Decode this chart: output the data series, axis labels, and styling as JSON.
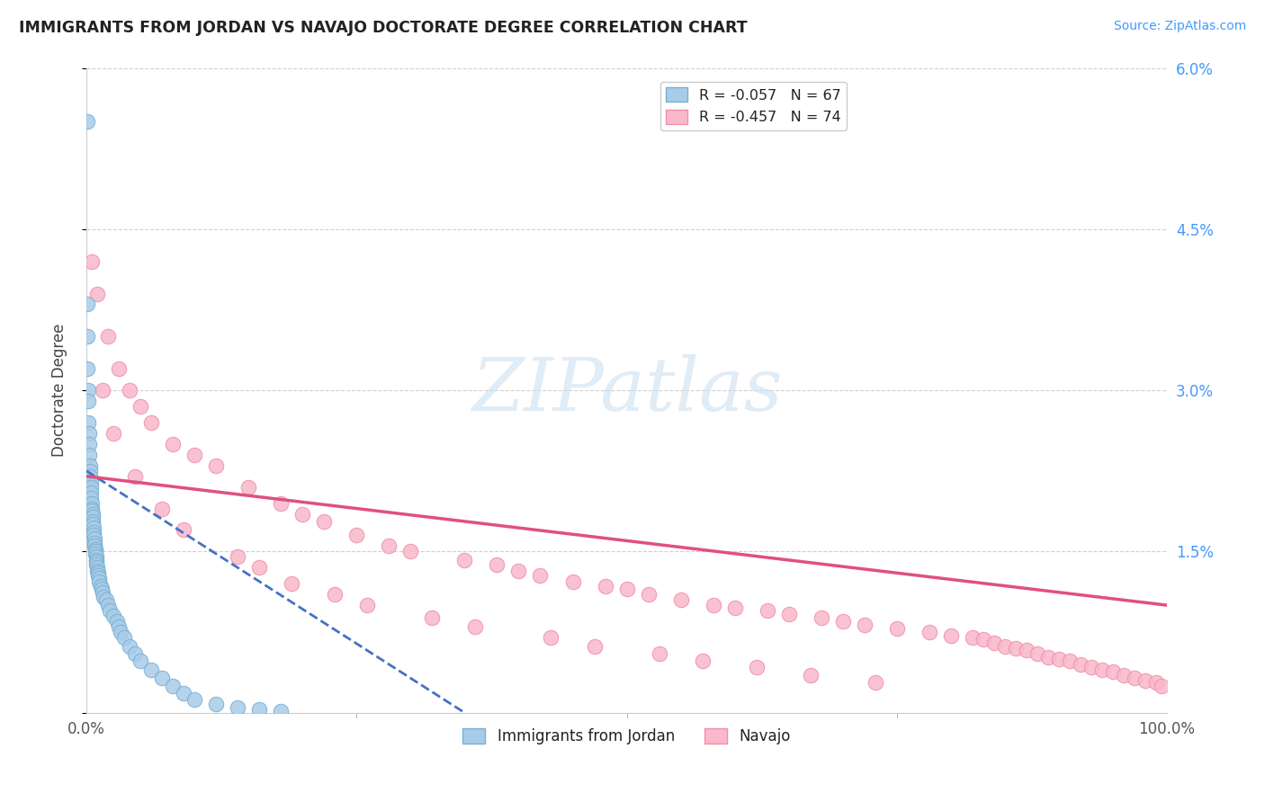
{
  "title": "IMMIGRANTS FROM JORDAN VS NAVAJO DOCTORATE DEGREE CORRELATION CHART",
  "source": "Source: ZipAtlas.com",
  "ylabel": "Doctorate Degree",
  "xlim": [
    0,
    100
  ],
  "ylim": [
    0,
    6.0
  ],
  "yticks": [
    0,
    1.5,
    3.0,
    4.5,
    6.0
  ],
  "yticklabels_right": [
    "",
    "1.5%",
    "3.0%",
    "4.5%",
    "6.0%"
  ],
  "xticklabels": [
    "0.0%",
    "100.0%"
  ],
  "legend1_label": "R = -0.057   N = 67",
  "legend2_label": "R = -0.457   N = 74",
  "legend_bottom_label1": "Immigrants from Jordan",
  "legend_bottom_label2": "Navajo",
  "blue_color": "#a8cce8",
  "pink_color": "#f9b8cb",
  "blue_edge": "#7aafd4",
  "pink_edge": "#f090aa",
  "trend_blue": "#4472c4",
  "trend_pink": "#e05080",
  "grid_color": "#d0d0d0",
  "background_color": "#ffffff",
  "title_color": "#222222",
  "source_color": "#4499ff",
  "axis_label_color": "#555555",
  "right_tick_color": "#4499ff",
  "jordan_x": [
    0.05,
    0.08,
    0.1,
    0.12,
    0.15,
    0.18,
    0.2,
    0.22,
    0.25,
    0.28,
    0.3,
    0.32,
    0.35,
    0.38,
    0.4,
    0.42,
    0.45,
    0.48,
    0.5,
    0.52,
    0.55,
    0.58,
    0.6,
    0.62,
    0.65,
    0.68,
    0.7,
    0.72,
    0.75,
    0.78,
    0.8,
    0.82,
    0.85,
    0.88,
    0.9,
    0.92,
    0.95,
    0.98,
    1.0,
    1.05,
    1.1,
    1.15,
    1.2,
    1.3,
    1.4,
    1.5,
    1.6,
    1.8,
    2.0,
    2.2,
    2.5,
    2.8,
    3.0,
    3.2,
    3.5,
    4.0,
    4.5,
    5.0,
    6.0,
    7.0,
    8.0,
    9.0,
    10.0,
    12.0,
    14.0,
    16.0,
    18.0
  ],
  "jordan_y": [
    5.5,
    3.8,
    3.5,
    3.2,
    3.0,
    2.9,
    2.7,
    2.6,
    2.5,
    2.4,
    2.3,
    2.25,
    2.2,
    2.15,
    2.1,
    2.05,
    2.0,
    1.95,
    1.9,
    1.88,
    1.85,
    1.82,
    1.78,
    1.75,
    1.72,
    1.68,
    1.65,
    1.62,
    1.58,
    1.55,
    1.52,
    1.5,
    1.48,
    1.45,
    1.42,
    1.4,
    1.38,
    1.35,
    1.32,
    1.3,
    1.28,
    1.25,
    1.22,
    1.18,
    1.15,
    1.12,
    1.08,
    1.05,
    1.0,
    0.95,
    0.9,
    0.85,
    0.8,
    0.75,
    0.7,
    0.62,
    0.55,
    0.48,
    0.4,
    0.32,
    0.25,
    0.18,
    0.12,
    0.08,
    0.05,
    0.03,
    0.01
  ],
  "navajo_x": [
    0.5,
    1.0,
    2.0,
    3.0,
    4.0,
    5.0,
    6.0,
    8.0,
    10.0,
    12.0,
    15.0,
    18.0,
    20.0,
    22.0,
    25.0,
    28.0,
    30.0,
    35.0,
    38.0,
    40.0,
    42.0,
    45.0,
    48.0,
    50.0,
    52.0,
    55.0,
    58.0,
    60.0,
    63.0,
    65.0,
    68.0,
    70.0,
    72.0,
    75.0,
    78.0,
    80.0,
    82.0,
    83.0,
    84.0,
    85.0,
    86.0,
    87.0,
    88.0,
    89.0,
    90.0,
    91.0,
    92.0,
    93.0,
    94.0,
    95.0,
    96.0,
    97.0,
    98.0,
    99.0,
    99.5,
    1.5,
    2.5,
    4.5,
    7.0,
    9.0,
    14.0,
    16.0,
    19.0,
    23.0,
    26.0,
    32.0,
    36.0,
    43.0,
    47.0,
    53.0,
    57.0,
    62.0,
    67.0,
    73.0
  ],
  "navajo_y": [
    4.2,
    3.9,
    3.5,
    3.2,
    3.0,
    2.85,
    2.7,
    2.5,
    2.4,
    2.3,
    2.1,
    1.95,
    1.85,
    1.78,
    1.65,
    1.55,
    1.5,
    1.42,
    1.38,
    1.32,
    1.28,
    1.22,
    1.18,
    1.15,
    1.1,
    1.05,
    1.0,
    0.98,
    0.95,
    0.92,
    0.88,
    0.85,
    0.82,
    0.78,
    0.75,
    0.72,
    0.7,
    0.68,
    0.65,
    0.62,
    0.6,
    0.58,
    0.55,
    0.52,
    0.5,
    0.48,
    0.45,
    0.42,
    0.4,
    0.38,
    0.35,
    0.32,
    0.3,
    0.28,
    0.25,
    3.0,
    2.6,
    2.2,
    1.9,
    1.7,
    1.45,
    1.35,
    1.2,
    1.1,
    1.0,
    0.88,
    0.8,
    0.7,
    0.62,
    0.55,
    0.48,
    0.42,
    0.35,
    0.28
  ],
  "jordan_trend_x": [
    0,
    35
  ],
  "jordan_trend_y": [
    2.25,
    0.0
  ],
  "navajo_trend_x": [
    0,
    100
  ],
  "navajo_trend_y": [
    2.2,
    1.0
  ]
}
